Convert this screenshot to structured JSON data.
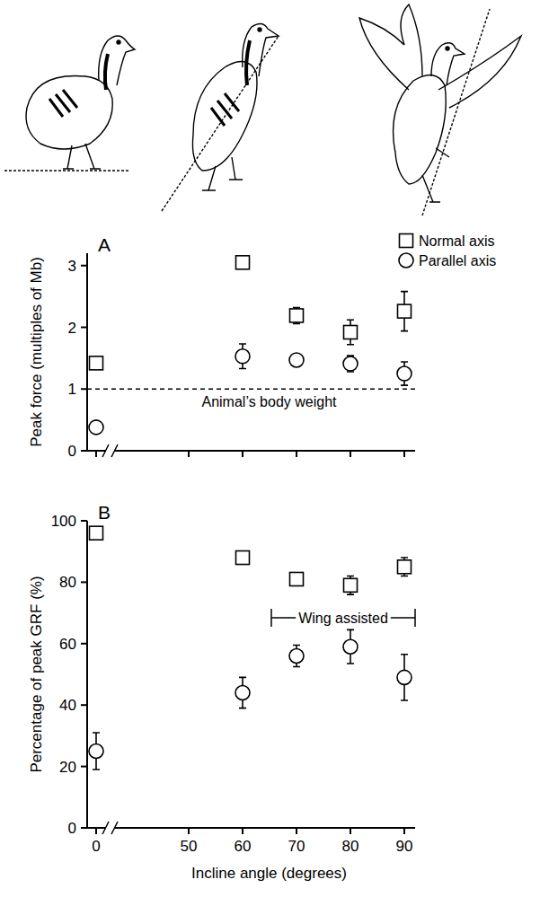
{
  "chart_data": [
    {
      "type": "scatter",
      "panel": "A",
      "y_label": "Peak force (multiples of Mb)",
      "categories": [
        "0",
        "50",
        "60",
        "70",
        "80",
        "90"
      ],
      "ylim": [
        0,
        3.2
      ],
      "yticks": [
        0,
        1,
        2,
        3
      ],
      "tick_labels": "y",
      "legend": "top-right",
      "series": [
        {
          "name": "Normal axis",
          "marker": "square",
          "color": "#000000",
          "values": [
            1.42,
            null,
            3.05,
            2.19,
            1.92,
            2.26
          ],
          "errors": [
            0.1,
            null,
            0.1,
            0.13,
            0.2,
            0.32
          ]
        },
        {
          "name": "Parallel axis",
          "marker": "circle",
          "color": "#000000",
          "values": [
            0.38,
            null,
            1.53,
            1.47,
            1.41,
            1.25
          ],
          "errors": [
            0.06,
            null,
            0.2,
            0.07,
            0.13,
            0.19
          ]
        }
      ],
      "annotations": [
        {
          "text": "Animal’s body weight",
          "y": 1
        }
      ]
    },
    {
      "type": "scatter",
      "panel": "B",
      "x_label": "Incline angle (degrees)",
      "y_label": "Percentage of peak GRF (%)",
      "categories": [
        "0",
        "50",
        "60",
        "70",
        "80",
        "90"
      ],
      "ylim": [
        0,
        100
      ],
      "yticks": [
        0,
        20,
        40,
        60,
        80,
        100
      ],
      "series": [
        {
          "name": "Normal axis",
          "marker": "square",
          "color": "#000000",
          "values": [
            96,
            null,
            88,
            81,
            79,
            85
          ],
          "errors": [
            1,
            null,
            1.5,
            2,
            3,
            3
          ]
        },
        {
          "name": "Parallel axis",
          "marker": "circle",
          "color": "#000000",
          "values": [
            25,
            null,
            44,
            56,
            59,
            49
          ],
          "errors": [
            6,
            null,
            5,
            3.5,
            5.5,
            7.5
          ]
        }
      ],
      "annotations": [
        {
          "text": "Wing assisted"
        }
      ]
    }
  ]
}
